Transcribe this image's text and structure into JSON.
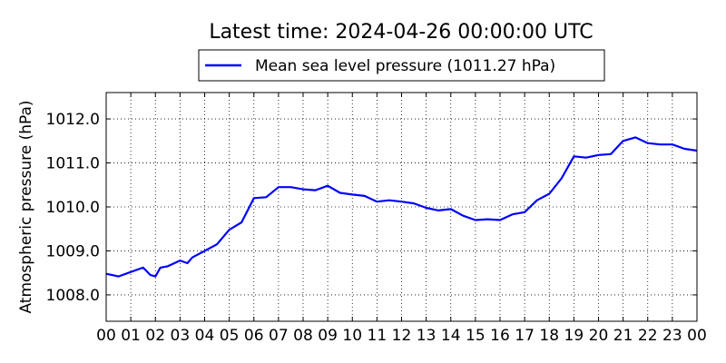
{
  "chart_data": {
    "type": "line",
    "title": "Latest time: 2024-04-26 00:00:00 UTC",
    "ylabel": "Atmospheric pressure (hPa)",
    "xlabel": "",
    "xlim": [
      0,
      24
    ],
    "ylim": [
      1007.4,
      1012.6
    ],
    "x_ticks": [
      "00",
      "01",
      "02",
      "03",
      "04",
      "05",
      "06",
      "07",
      "08",
      "09",
      "10",
      "11",
      "12",
      "13",
      "14",
      "15",
      "16",
      "17",
      "18",
      "19",
      "20",
      "21",
      "22",
      "23",
      "00"
    ],
    "y_ticks": [
      "1008.0",
      "1009.0",
      "1010.0",
      "1011.0",
      "1012.0"
    ],
    "grid": true,
    "legend_position": "top-center, outside plot",
    "series": [
      {
        "name": "Mean sea level pressure (1011.27 hPa)",
        "color": "#0000ff",
        "x": [
          0,
          0.5,
          1.0,
          1.5,
          1.8,
          2.0,
          2.2,
          2.5,
          3.0,
          3.3,
          3.5,
          4.0,
          4.5,
          5.0,
          5.5,
          6.0,
          6.5,
          7.0,
          7.5,
          8.0,
          8.5,
          9.0,
          9.5,
          10.0,
          10.5,
          11.0,
          11.5,
          12.0,
          12.5,
          13.0,
          13.5,
          14.0,
          14.5,
          15.0,
          15.5,
          16.0,
          16.5,
          17.0,
          17.5,
          18.0,
          18.5,
          19.0,
          19.5,
          20.0,
          20.5,
          21.0,
          21.5,
          22.0,
          22.5,
          23.0,
          23.5,
          24.0
        ],
        "values": [
          1008.48,
          1008.42,
          1008.52,
          1008.62,
          1008.45,
          1008.42,
          1008.62,
          1008.65,
          1008.78,
          1008.72,
          1008.85,
          1009.0,
          1009.15,
          1009.48,
          1009.65,
          1010.2,
          1010.22,
          1010.45,
          1010.45,
          1010.4,
          1010.38,
          1010.48,
          1010.32,
          1010.28,
          1010.25,
          1010.12,
          1010.15,
          1010.12,
          1010.08,
          1009.98,
          1009.92,
          1009.95,
          1009.8,
          1009.7,
          1009.72,
          1009.7,
          1009.83,
          1009.88,
          1010.15,
          1010.3,
          1010.65,
          1011.15,
          1011.12,
          1011.18,
          1011.2,
          1011.5,
          1011.58,
          1011.45,
          1011.42,
          1011.42,
          1011.32,
          1011.28
        ]
      }
    ]
  }
}
